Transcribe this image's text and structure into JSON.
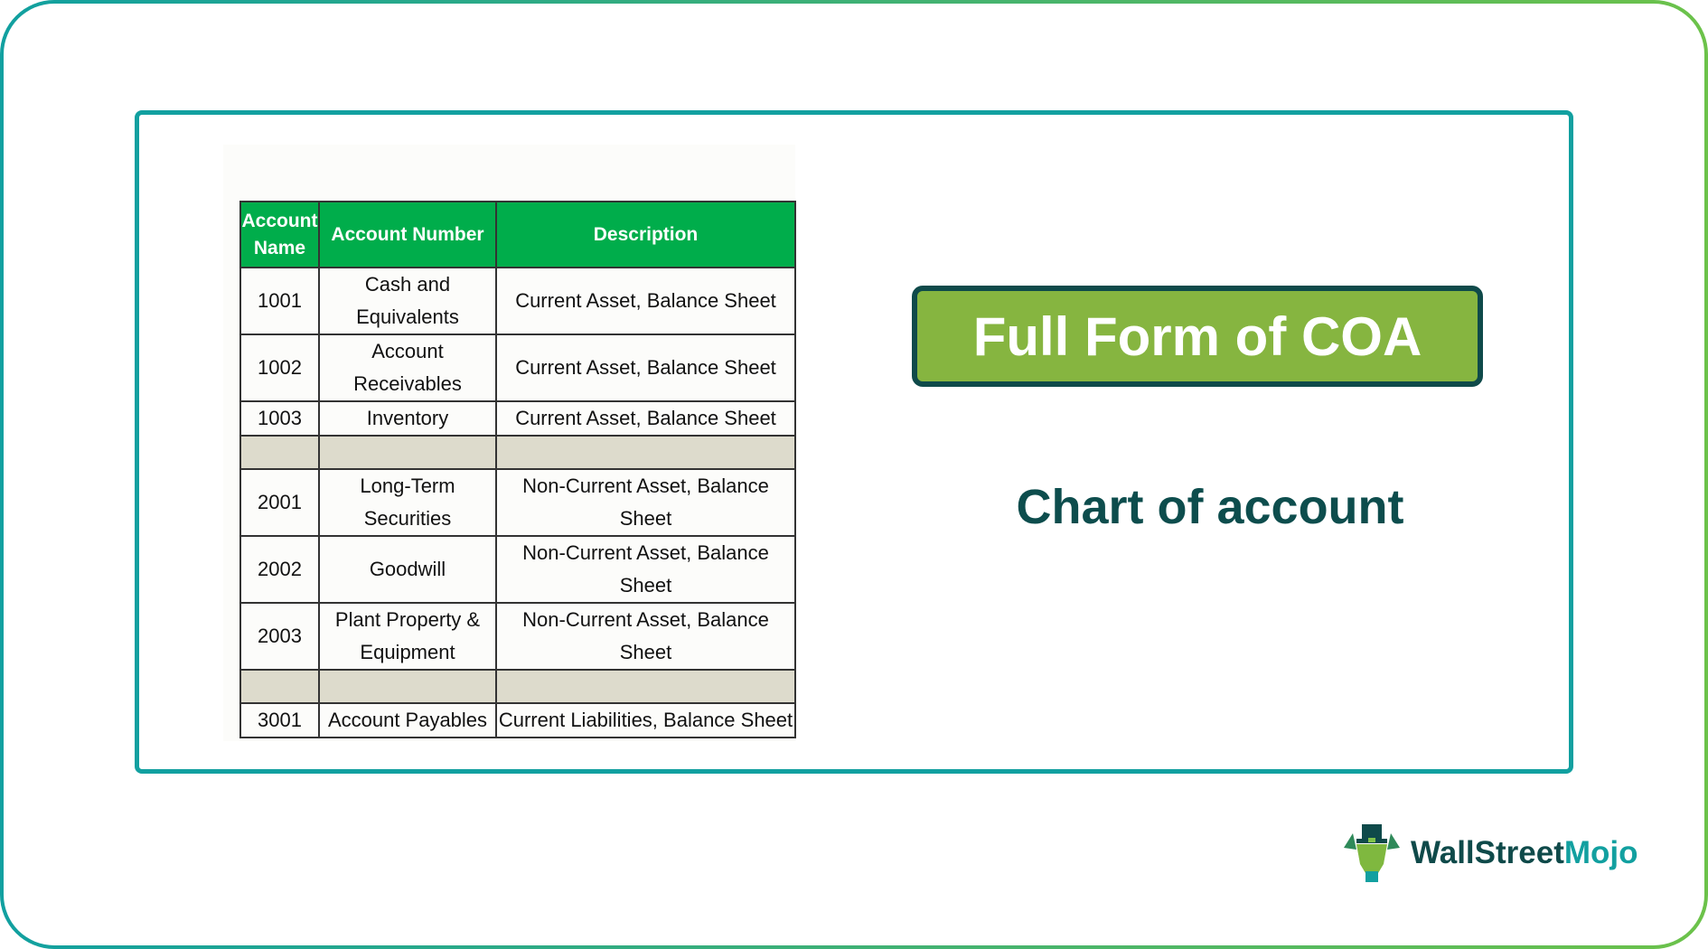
{
  "table": {
    "headers": [
      "Account Name",
      "Account Number",
      "Description"
    ],
    "rows": [
      {
        "number": "1001",
        "name": "Cash and Equivalents",
        "description": "Current Asset, Balance Sheet"
      },
      {
        "number": "1002",
        "name": "Account Receivables",
        "description": "Current Asset, Balance Sheet"
      },
      {
        "number": "1003",
        "name": "Inventory",
        "description": "Current Asset, Balance Sheet"
      },
      {
        "number": "",
        "name": "",
        "description": ""
      },
      {
        "number": "2001",
        "name": "Long-Term Securities",
        "description": "Non-Current Asset, Balance Sheet"
      },
      {
        "number": "2002",
        "name": "Goodwill",
        "description": "Non-Current Asset, Balance Sheet"
      },
      {
        "number": "2003",
        "name": "Plant Property & Equipment",
        "description": "Non-Current Asset, Balance Sheet"
      },
      {
        "number": "",
        "name": "",
        "description": ""
      },
      {
        "number": "3001",
        "name": "Account Payables",
        "description": "Current Liabilities, Balance Sheet"
      }
    ]
  },
  "title": "Full Form of COA",
  "subtitle": "Chart of account",
  "logo": {
    "part1": "WallStreet",
    "part2": "Mojo"
  },
  "colors": {
    "header_green": "#00ad4b",
    "title_green": "#86b540",
    "teal": "#12a0a0",
    "dark_teal": "#0f4a4a",
    "blank_row": "#dddbcc"
  }
}
